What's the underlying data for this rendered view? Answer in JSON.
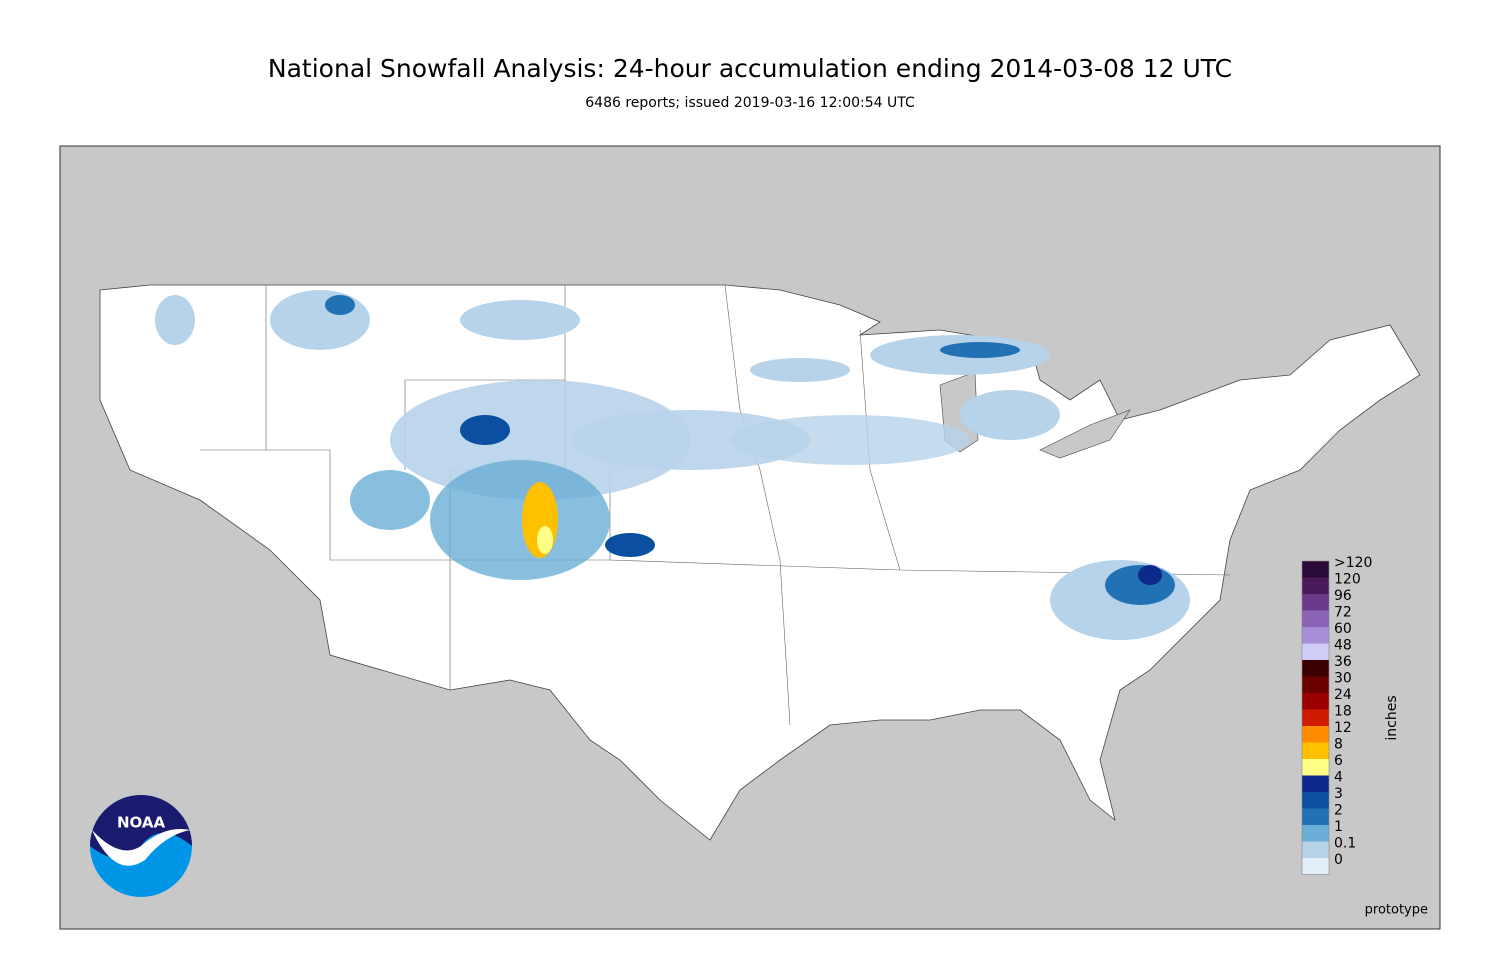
{
  "header": {
    "title": "National Snowfall Analysis: 24-hour accumulation ending 2014-03-08 12 UTC",
    "subtitle": "6486 reports; issued 2019-03-16 12:00:54 UTC"
  },
  "legend": {
    "title": "inches",
    "bins": [
      {
        "label": ">120",
        "color": "#2a0a36"
      },
      {
        "label": "120",
        "color": "#4a1a5c"
      },
      {
        "label": "96",
        "color": "#6a3a8a"
      },
      {
        "label": "72",
        "color": "#8a62b6"
      },
      {
        "label": "60",
        "color": "#a68fd6"
      },
      {
        "label": "48",
        "color": "#d0ccf8"
      },
      {
        "label": "36",
        "color": "#3c0000"
      },
      {
        "label": "30",
        "color": "#6a0000"
      },
      {
        "label": "24",
        "color": "#9a0000"
      },
      {
        "label": "18",
        "color": "#d01a00"
      },
      {
        "label": "12",
        "color": "#ff8c00"
      },
      {
        "label": "8",
        "color": "#ffc000"
      },
      {
        "label": "6",
        "color": "#ffff88"
      },
      {
        "label": "4",
        "color": "#0c2a8c"
      },
      {
        "label": "3",
        "color": "#0b4fa0"
      },
      {
        "label": "2",
        "color": "#2171b5"
      },
      {
        "label": "1",
        "color": "#6aaed6"
      },
      {
        "label": "0.1",
        "color": "#b7d3ea"
      },
      {
        "label": "0",
        "color": "#e4eef8"
      }
    ]
  },
  "footer": {
    "note": "prototype"
  },
  "logo": {
    "text": "NOAA"
  }
}
